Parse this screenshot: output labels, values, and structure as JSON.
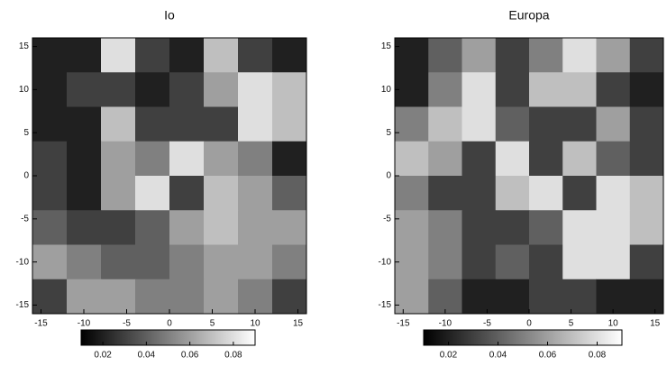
{
  "chart_data": [
    {
      "type": "heatmap",
      "title": "Io",
      "xlim": [
        -16,
        16
      ],
      "ylim": [
        -16,
        16
      ],
      "xticks": [
        -15,
        -10,
        -5,
        0,
        5,
        10,
        15
      ],
      "yticks": [
        -15,
        -10,
        -5,
        0,
        5,
        10,
        15
      ],
      "z": [
        [
          0.02,
          0.02,
          0.08,
          0.03,
          0.02,
          0.07,
          0.03,
          0.02
        ],
        [
          0.02,
          0.03,
          0.03,
          0.02,
          0.03,
          0.06,
          0.08,
          0.07
        ],
        [
          0.02,
          0.02,
          0.07,
          0.03,
          0.03,
          0.03,
          0.08,
          0.07
        ],
        [
          0.03,
          0.02,
          0.06,
          0.05,
          0.08,
          0.06,
          0.05,
          0.02
        ],
        [
          0.03,
          0.02,
          0.06,
          0.08,
          0.03,
          0.07,
          0.06,
          0.04
        ],
        [
          0.04,
          0.03,
          0.03,
          0.04,
          0.06,
          0.07,
          0.06,
          0.06
        ],
        [
          0.06,
          0.05,
          0.04,
          0.04,
          0.05,
          0.06,
          0.06,
          0.05
        ],
        [
          0.03,
          0.06,
          0.06,
          0.05,
          0.05,
          0.06,
          0.05,
          0.03
        ]
      ],
      "colors": [
        "#000000",
        "#ffffff"
      ],
      "colorbar": {
        "clim": [
          0.01,
          0.09
        ],
        "ticks": [
          0.02,
          0.04,
          0.06,
          0.08
        ]
      }
    },
    {
      "type": "heatmap",
      "title": "Europa",
      "xlim": [
        -16,
        16
      ],
      "ylim": [
        -16,
        16
      ],
      "xticks": [
        -15,
        -10,
        -5,
        0,
        5,
        10,
        15
      ],
      "yticks": [
        -15,
        -10,
        -5,
        0,
        5,
        10,
        15
      ],
      "z": [
        [
          0.02,
          0.04,
          0.06,
          0.03,
          0.05,
          0.08,
          0.06,
          0.03
        ],
        [
          0.02,
          0.05,
          0.08,
          0.03,
          0.07,
          0.07,
          0.03,
          0.02
        ],
        [
          0.05,
          0.07,
          0.08,
          0.04,
          0.03,
          0.03,
          0.06,
          0.03
        ],
        [
          0.07,
          0.06,
          0.03,
          0.08,
          0.03,
          0.07,
          0.04,
          0.03
        ],
        [
          0.05,
          0.03,
          0.03,
          0.07,
          0.08,
          0.03,
          0.08,
          0.07
        ],
        [
          0.06,
          0.05,
          0.03,
          0.03,
          0.04,
          0.08,
          0.08,
          0.07
        ],
        [
          0.06,
          0.05,
          0.03,
          0.04,
          0.03,
          0.08,
          0.08,
          0.03
        ],
        [
          0.06,
          0.04,
          0.02,
          0.02,
          0.03,
          0.03,
          0.02,
          0.02
        ]
      ],
      "colors": [
        "#000000",
        "#ffffff"
      ],
      "colorbar": {
        "clim": [
          0.01,
          0.09
        ],
        "ticks": [
          0.02,
          0.04,
          0.06,
          0.08
        ]
      }
    }
  ]
}
